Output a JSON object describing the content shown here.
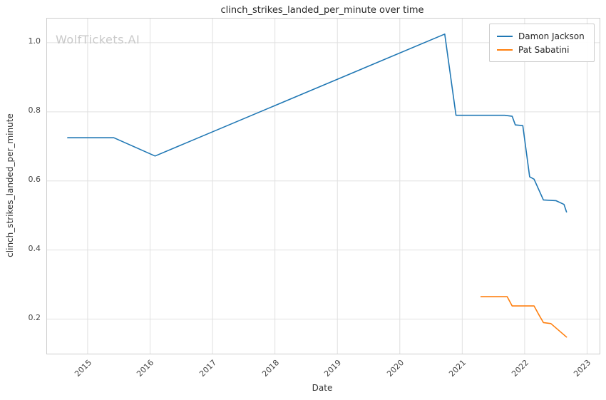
{
  "watermark": "WolfTickets.AI",
  "chart_data": {
    "type": "line",
    "title": "clinch_strikes_landed_per_minute over time",
    "xlabel": "Date",
    "ylabel": "clinch_strikes_landed_per_minute",
    "x_ticks": [
      2015,
      2016,
      2017,
      2018,
      2019,
      2020,
      2021,
      2022,
      2023
    ],
    "y_ticks": [
      0.2,
      0.4,
      0.6,
      0.8,
      1.0
    ],
    "xlim": [
      2014.35,
      2023.2
    ],
    "ylim": [
      0.1,
      1.07
    ],
    "grid": true,
    "legend_position": "upper right",
    "series": [
      {
        "name": "Damon Jackson",
        "color": "#1f77b4",
        "x": [
          2014.68,
          2015.42,
          2016.08,
          2020.72,
          2020.9,
          2021.68,
          2021.8,
          2021.85,
          2021.97,
          2022.08,
          2022.15,
          2022.3,
          2022.5,
          2022.63,
          2022.67
        ],
        "y": [
          0.725,
          0.725,
          0.672,
          1.025,
          0.79,
          0.79,
          0.787,
          0.762,
          0.76,
          0.612,
          0.605,
          0.545,
          0.543,
          0.532,
          0.51
        ]
      },
      {
        "name": "Pat Sabatini",
        "color": "#ff7f0e",
        "x": [
          2021.3,
          2021.72,
          2021.8,
          2022.15,
          2022.22,
          2022.3,
          2022.42,
          2022.67
        ],
        "y": [
          0.265,
          0.265,
          0.238,
          0.238,
          0.215,
          0.19,
          0.187,
          0.148
        ]
      }
    ]
  }
}
